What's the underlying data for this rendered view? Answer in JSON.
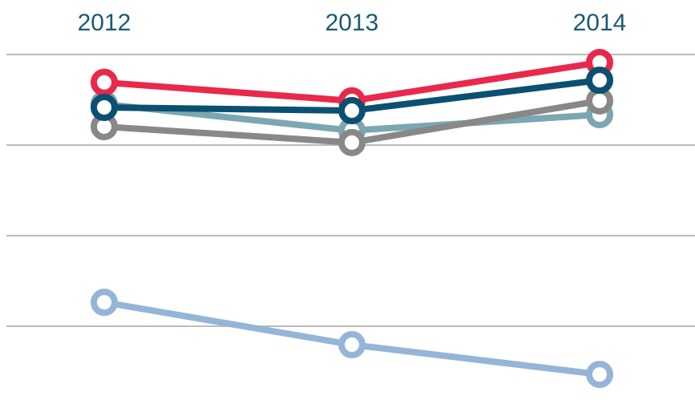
{
  "chart_data": {
    "type": "line",
    "categories": [
      "2012",
      "2013",
      "2014"
    ],
    "series": [
      {
        "color": "#95b5d8",
        "values": [
          31.6,
          19.9,
          11.7
        ]
      },
      {
        "color": "#7aa7b1",
        "values": [
          86.3,
          79.0,
          83.4
        ]
      },
      {
        "color": "#888888",
        "values": [
          80.1,
          75.7,
          87.2
        ]
      },
      {
        "color": "#e8294b",
        "values": [
          92.3,
          87.2,
          97.8
        ]
      },
      {
        "color": "#0b5070",
        "values": [
          85.4,
          84.5,
          92.9
        ]
      }
    ],
    "ylim": [
      0,
      100
    ],
    "yticks": [
      25,
      50,
      75,
      100
    ],
    "grid": true
  }
}
